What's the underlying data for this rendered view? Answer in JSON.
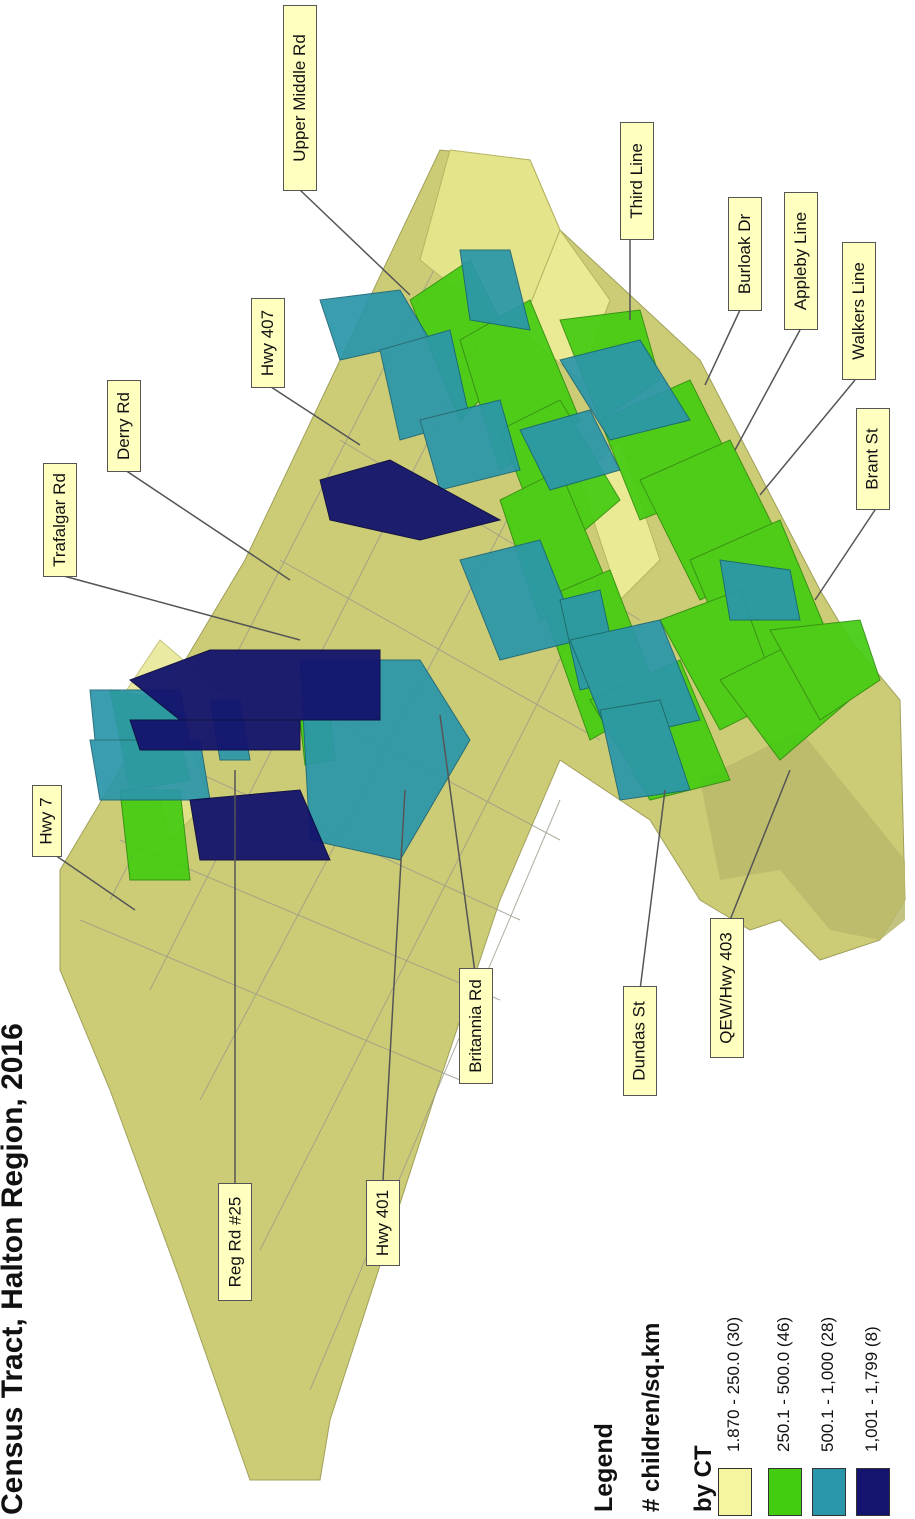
{
  "title": "Census Tract, Halton Region, 2016",
  "legend": {
    "heading": "Legend",
    "subheading_line1": "# children/sq.km",
    "subheading_line2": "by CT",
    "classes": [
      {
        "label": "1.870 - 250.0 (30)",
        "color": "#f5f5a0"
      },
      {
        "label": "250.1 - 500.0 (46)",
        "color": "#44cc11"
      },
      {
        "label": "500.1 - 1,000 (28)",
        "color": "#2a96aa"
      },
      {
        "label": "1,001 - 1,799 (8)",
        "color": "#14146e"
      }
    ]
  },
  "road_labels": {
    "hwy7": "Hwy 7",
    "reg_rd_25": "Reg Rd #25",
    "hwy401": "Hwy 401",
    "britannia": "Britannia Rd",
    "dundas": "Dundas St",
    "qew": "QEW/Hwy 403",
    "trafalgar": "Trafalgar Rd",
    "derry": "Derry Rd",
    "hwy407": "Hwy 407",
    "upper_middle": "Upper Middle Rd",
    "third_line": "Third Line",
    "burloak": "Burloak Dr",
    "appleby": "Appleby Line",
    "walkers": "Walkers Line",
    "brant": "Brant St"
  },
  "colors": {
    "base": "#cccc77",
    "base_dark": "#a8a85c",
    "class1": "#f5f5a0",
    "class2": "#44cc11",
    "class3": "#2a96aa",
    "class4": "#14146e"
  }
}
